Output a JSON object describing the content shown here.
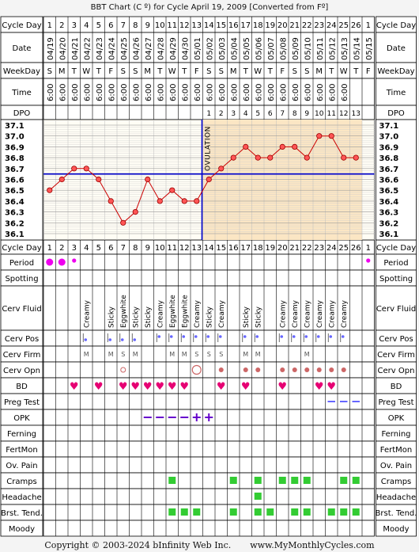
{
  "title": "BBT Chart (C º) for Cycle April 19, 2009  [Converted from Fº]",
  "footer": {
    "copyright": "Copyright © 2003-2024 bInfinity Web Inc.",
    "site": "www.MyMonthlyCycles.com"
  },
  "row_labels": {
    "cycle_day": "Cycle Day",
    "date": "Date",
    "weekday": "WeekDay",
    "time": "Time",
    "dpo": "DPO",
    "period": "Period",
    "spotting": "Spotting",
    "cerv_fluid": "Cerv Fluid",
    "cerv_pos": "Cerv Pos",
    "cerv_firm": "Cerv Firm",
    "cerv_opn": "Cerv Opn",
    "bd": "BD",
    "preg_test": "Preg Test",
    "opk": "OPK",
    "ferning": "Ferning",
    "fertmon": "FertMon",
    "ov_pain": "Ov. Pain",
    "cramps": "Cramps",
    "headache": "Headache",
    "brst_tend": "Brst. Tend.",
    "moody": "Moody"
  },
  "cycle_days": [
    "1",
    "2",
    "3",
    "4",
    "5",
    "6",
    "7",
    "8",
    "9",
    "10",
    "11",
    "12",
    "13",
    "14",
    "15",
    "16",
    "17",
    "18",
    "19",
    "20",
    "21",
    "22",
    "23",
    "24",
    "25",
    "26",
    "1"
  ],
  "dates": [
    "04/19",
    "04/20",
    "04/21",
    "04/22",
    "04/23",
    "04/24",
    "04/25",
    "04/26",
    "04/27",
    "04/28",
    "04/29",
    "04/30",
    "05/01",
    "05/02",
    "05/03",
    "05/04",
    "05/05",
    "05/06",
    "05/07",
    "05/08",
    "05/09",
    "05/10",
    "05/11",
    "05/12",
    "05/13",
    "05/14",
    "05/15"
  ],
  "weekdays": [
    "S",
    "M",
    "T",
    "W",
    "T",
    "F",
    "S",
    "S",
    "M",
    "T",
    "W",
    "T",
    "F",
    "S",
    "S",
    "M",
    "T",
    "W",
    "T",
    "F",
    "S",
    "S",
    "M",
    "T",
    "W",
    "T",
    "F"
  ],
  "times": [
    "6:00",
    "6:00",
    "6:00",
    "6:00",
    "6:00",
    "6:00",
    "6:00",
    "6:00",
    "6:00",
    "6:00",
    "6:00",
    "6:00",
    "6:00",
    "6:00",
    "6:00",
    "6:00",
    "6:00",
    "6:00",
    "6:00",
    "6:00",
    "6:00",
    "6:00",
    "6:00",
    "6:00",
    "6:00",
    "",
    ""
  ],
  "dpo": [
    "",
    "",
    "",
    "",
    "",
    "",
    "",
    "",
    "",
    "",
    "",
    "",
    "",
    "1",
    "2",
    "3",
    "4",
    "5",
    "6",
    "7",
    "8",
    "9",
    "10",
    "11",
    "12",
    "13",
    ""
  ],
  "ovulation_label": "OVULATION",
  "cover_temp": "36.65",
  "chart_data": {
    "type": "line",
    "title": "BBT Chart (C º) for Cycle April 19, 2009  [Converted from Fº]",
    "xlabel": "Cycle Day",
    "ylabel": "",
    "ylim": [
      36.1,
      37.1
    ],
    "y_ticks": [
      "37.1",
      "37.0",
      "36.9",
      "36.8",
      "36.7",
      "36.6",
      "36.5",
      "36.4",
      "36.3",
      "36.2",
      "36.1"
    ],
    "x": [
      1,
      2,
      3,
      4,
      5,
      6,
      7,
      8,
      9,
      10,
      11,
      12,
      13,
      14,
      15,
      16,
      17,
      18,
      19,
      20,
      21,
      22,
      23,
      24,
      25,
      26
    ],
    "series": [
      {
        "values": [
          36.5,
          36.6,
          36.7,
          36.7,
          36.6,
          36.4,
          36.2,
          36.3,
          36.6,
          36.4,
          36.5,
          36.4,
          36.4,
          36.6,
          36.7,
          36.8,
          36.9,
          36.8,
          36.8,
          36.9,
          36.9,
          36.8,
          37.0,
          37.0,
          36.8,
          36.8
        ]
      }
    ],
    "ovulation_day": 13,
    "coverline": 36.65,
    "grid": true
  },
  "period": [
    "large",
    "large",
    "small",
    "",
    "",
    "",
    "",
    "",
    "",
    "",
    "",
    "",
    "",
    "",
    "",
    "",
    "",
    "",
    "",
    "",
    "",
    "",
    "",
    "",
    "",
    "",
    "small"
  ],
  "cerv_fluid": [
    "",
    "",
    "",
    "Creamy",
    "",
    "Sticky",
    "Eggwhite",
    "Sticky",
    "Sticky",
    "Creamy",
    "Eggwhite",
    "Eggwhite",
    "Creamy",
    "Sticky",
    "Creamy",
    "",
    "Sticky",
    "Sticky",
    "",
    "Creamy",
    "Creamy",
    "Creamy",
    "Creamy",
    "Creamy",
    "Creamy",
    "",
    ""
  ],
  "cerv_pos": [
    "",
    "",
    "",
    "low",
    "",
    "low",
    "low",
    "low",
    "",
    "mid",
    "mid",
    "mid",
    "mid",
    "mid",
    "mid",
    "",
    "mid",
    "mid",
    "",
    "mid",
    "mid",
    "mid",
    "mid",
    "mid",
    "mid",
    "",
    ""
  ],
  "cerv_firm": [
    "",
    "",
    "",
    "M",
    "",
    "M",
    "S",
    "M",
    "",
    "",
    "M",
    "M",
    "S",
    "S",
    "S",
    "",
    "M",
    "M",
    "",
    "",
    "",
    "M",
    "",
    "",
    "",
    "",
    ""
  ],
  "cerv_opn": [
    "",
    "",
    "",
    "",
    "",
    "",
    "small-open",
    "",
    "",
    "",
    "",
    "",
    "large-open",
    "",
    "dot",
    "",
    "dot",
    "dot",
    "",
    "dot",
    "dot",
    "dot",
    "dot",
    "dot",
    "dot",
    "",
    ""
  ],
  "bd": [
    "",
    "",
    "♥",
    "",
    "♥",
    "",
    "♥",
    "♥",
    "♥",
    "♥",
    "♥",
    "♥",
    "",
    "",
    "♥",
    "",
    "♥",
    "",
    "",
    "♥",
    "",
    "",
    "♥",
    "♥",
    "",
    "",
    ""
  ],
  "preg_test": [
    "",
    "",
    "",
    "",
    "",
    "",
    "",
    "",
    "",
    "",
    "",
    "",
    "",
    "",
    "",
    "",
    "",
    "",
    "",
    "",
    "",
    "",
    "",
    "neg",
    "neg",
    "neg",
    ""
  ],
  "opk": [
    "",
    "",
    "",
    "",
    "",
    "",
    "",
    "",
    "neg",
    "neg",
    "neg",
    "neg",
    "pos",
    "pos",
    "",
    "",
    "",
    "",
    "",
    "",
    "",
    "",
    "",
    "",
    "",
    "",
    ""
  ],
  "cramps": [
    false,
    false,
    false,
    false,
    false,
    false,
    false,
    false,
    false,
    false,
    true,
    false,
    false,
    false,
    false,
    true,
    false,
    true,
    false,
    true,
    true,
    true,
    false,
    false,
    true,
    true,
    false
  ],
  "headache": [
    false,
    false,
    false,
    false,
    false,
    false,
    false,
    false,
    false,
    false,
    false,
    false,
    false,
    false,
    false,
    false,
    false,
    true,
    false,
    false,
    false,
    false,
    false,
    false,
    false,
    false,
    false
  ],
  "brst_tend": [
    false,
    false,
    false,
    false,
    false,
    false,
    false,
    false,
    false,
    false,
    true,
    true,
    true,
    false,
    false,
    true,
    false,
    true,
    true,
    false,
    true,
    true,
    false,
    true,
    true,
    true,
    false
  ],
  "colors": {
    "post_ovulation_shade": "#fbe6c4",
    "temp_line": "#cc0000",
    "coverline": "#0000cc",
    "ovulation_line": "#0000cc",
    "period": "#ee00ee",
    "bd_heart": "#e60073",
    "opk": "#6600cc",
    "preg_test": "#6666ff",
    "symptom": "#33cc33",
    "cerv_pos": "#6666ff",
    "cerv_opn_dot": "#cc6666"
  }
}
